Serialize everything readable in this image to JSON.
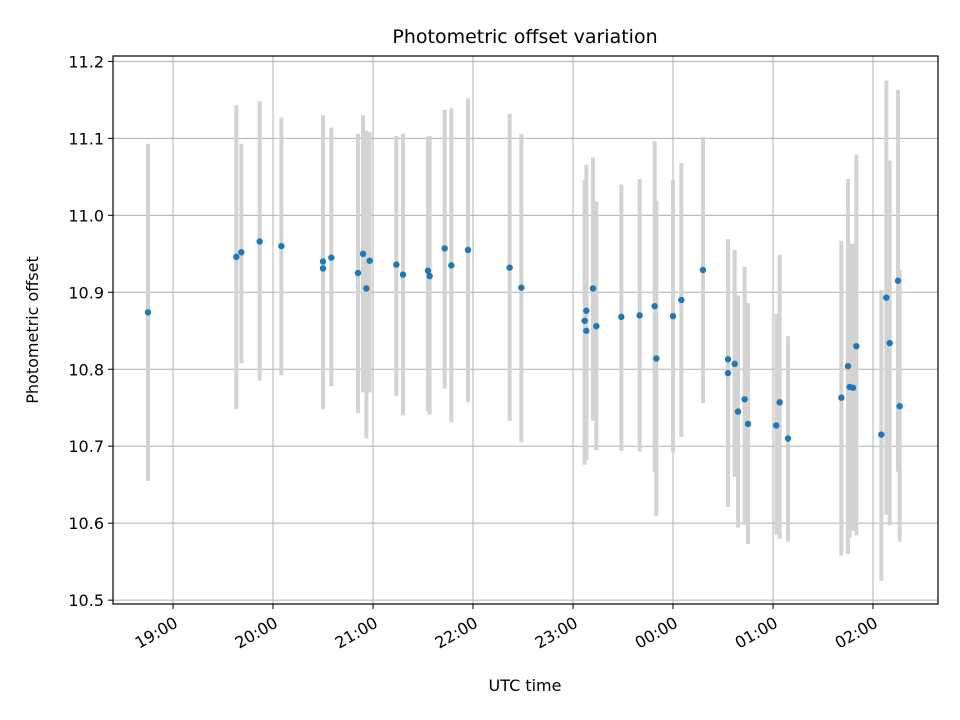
{
  "colors": {
    "point": "#1f77b4",
    "errorbar": "#d3d3d3",
    "grid": "#b0b0b0",
    "background": "#ffffff"
  },
  "chart_data": {
    "type": "scatter",
    "title": "Photometric offset variation",
    "xlabel": "UTC time",
    "ylabel": "Photometric offset",
    "xaxis_kind": "time",
    "xlim": [
      "18:24",
      "02:39"
    ],
    "ylim": [
      10.495,
      11.207
    ],
    "grid": true,
    "x_tick_labels": [
      "19:00",
      "20:00",
      "21:00",
      "22:00",
      "23:00",
      "00:00",
      "01:00",
      "02:00"
    ],
    "x_tick_values": [
      "19:00",
      "20:00",
      "21:00",
      "22:00",
      "23:00",
      "00:00",
      "01:00",
      "02:00"
    ],
    "y_tick_labels": [
      "10.5",
      "10.6",
      "10.7",
      "10.8",
      "10.9",
      "11.0",
      "11.1",
      "11.2"
    ],
    "y_tick_values": [
      10.5,
      10.6,
      10.7,
      10.8,
      10.9,
      11.0,
      11.1,
      11.2
    ],
    "series": [
      {
        "x": [
          "18:45",
          "19:38",
          "19:41",
          "19:52",
          "20:05",
          "20:30",
          "20:30",
          "20:35",
          "20:51",
          "20:54",
          "20:56",
          "20:58",
          "21:14",
          "21:18",
          "21:33",
          "21:34",
          "21:43",
          "21:47",
          "21:57",
          "22:22",
          "22:29",
          "23:07",
          "23:08",
          "23:08",
          "23:12",
          "23:14",
          "23:29",
          "23:40",
          "23:49",
          "23:50",
          "24:00",
          "24:05",
          "24:18",
          "24:33",
          "24:33",
          "24:37",
          "24:39",
          "24:43",
          "24:45",
          "25:02",
          "25:04",
          "25:09",
          "25:41",
          "25:45",
          "25:46",
          "25:48",
          "25:50",
          "26:05",
          "26:08",
          "26:10",
          "26:15",
          "26:16"
        ],
        "y": [
          10.874,
          10.946,
          10.952,
          10.966,
          10.96,
          10.94,
          10.931,
          10.945,
          10.925,
          10.95,
          10.905,
          10.941,
          10.936,
          10.923,
          10.928,
          10.921,
          10.957,
          10.935,
          10.955,
          10.932,
          10.906,
          10.863,
          10.85,
          10.876,
          10.905,
          10.856,
          10.868,
          10.87,
          10.882,
          10.814,
          10.869,
          10.89,
          10.929,
          10.813,
          10.795,
          10.807,
          10.745,
          10.761,
          10.729,
          10.727,
          10.757,
          10.71,
          10.763,
          10.804,
          10.777,
          10.776,
          10.83,
          10.715,
          10.893,
          10.834,
          10.915,
          10.752
        ],
        "err_lo": [
          10.655,
          10.748,
          10.808,
          10.785,
          10.792,
          10.748,
          10.748,
          10.778,
          10.743,
          10.77,
          10.71,
          10.77,
          10.765,
          10.74,
          10.745,
          10.741,
          10.775,
          10.731,
          10.757,
          10.733,
          10.705,
          10.676,
          10.682,
          10.686,
          10.733,
          10.695,
          10.694,
          10.693,
          10.667,
          10.609,
          10.692,
          10.712,
          10.756,
          10.621,
          10.659,
          10.66,
          10.594,
          10.598,
          10.573,
          10.585,
          10.58,
          10.576,
          10.558,
          10.56,
          10.581,
          10.59,
          10.584,
          10.525,
          10.611,
          10.597,
          10.667,
          10.576
        ],
        "err_hi": [
          11.093,
          11.143,
          11.093,
          11.148,
          11.127,
          11.13,
          11.109,
          11.114,
          11.106,
          11.13,
          11.11,
          11.108,
          11.103,
          11.106,
          11.102,
          11.103,
          11.137,
          11.139,
          11.152,
          11.132,
          11.106,
          11.046,
          11.015,
          11.066,
          11.075,
          11.018,
          11.04,
          11.047,
          11.096,
          11.019,
          11.046,
          11.068,
          11.102,
          10.969,
          10.968,
          10.955,
          10.896,
          10.933,
          10.886,
          10.872,
          10.949,
          10.843,
          10.967,
          11.047,
          10.963,
          10.963,
          11.079,
          10.903,
          11.175,
          11.071,
          11.163,
          10.929
        ]
      }
    ]
  }
}
